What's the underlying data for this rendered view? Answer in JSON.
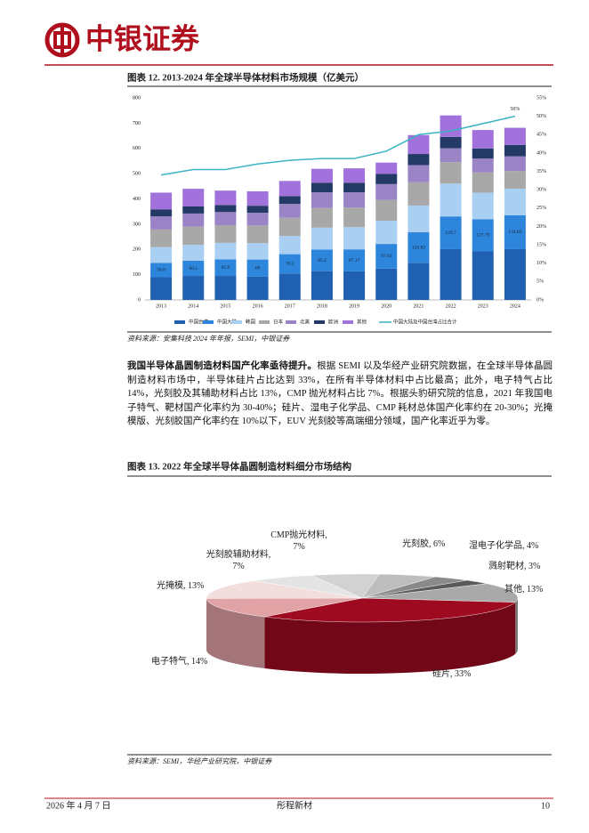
{
  "header": {
    "brand": "中银证券"
  },
  "chart_data": [
    {
      "type": "bar",
      "stacked": true,
      "title": "图表 12. 2013-2024 年全球半导体材料市场规模（亿美元）",
      "source": "资料来源：安集科技 2024 年年报，SEMI，中银证券",
      "categories": [
        "2013",
        "2014",
        "2015",
        "2016",
        "2017",
        "2018",
        "2019",
        "2020",
        "2021",
        "2022",
        "2023",
        "2024"
      ],
      "series": [
        {
          "name": "中国台湾",
          "color": "#2060b0",
          "values": [
            90,
            95,
            95,
            92,
            105,
            114,
            113,
            124,
            147,
            201,
            192,
            201
          ]
        },
        {
          "name": "中国大陆",
          "color": "#2e86dc",
          "show_values": true,
          "values": [
            56.8,
            60.1,
            65.9,
            68,
            76.2,
            85.2,
            87.17,
            97.63,
            120.82,
            129.7,
            127.79,
            134.63
          ]
        },
        {
          "name": "韩国",
          "color": "#a9d0f2",
          "values": [
            62,
            63,
            65,
            65,
            72,
            87,
            88,
            92,
            106,
            130,
            105,
            105
          ]
        },
        {
          "name": "日本",
          "color": "#a8a8a8",
          "values": [
            70,
            72,
            70,
            70,
            72,
            78,
            78,
            82,
            92,
            85,
            80,
            70
          ]
        },
        {
          "name": "北美",
          "color": "#9a84c6",
          "values": [
            52,
            52,
            52,
            50,
            55,
            62,
            60,
            63,
            68,
            55,
            55,
            58
          ]
        },
        {
          "name": "欧洲",
          "color": "#243a66",
          "values": [
            28,
            28,
            28,
            28,
            31,
            38,
            38,
            40,
            44,
            45,
            40,
            45
          ]
        },
        {
          "name": "其他",
          "color": "#a272dc",
          "values": [
            66,
            70,
            57,
            57,
            60,
            55,
            57,
            45,
            75,
            85,
            73,
            68
          ]
        },
        {
          "name": "中国大陆及中国台湾占比合计",
          "type": "line",
          "axis": "y2",
          "color": "#3bb3c3",
          "values": [
            34,
            35.5,
            35.5,
            37,
            38,
            38.5,
            38.5,
            40.5,
            45,
            46,
            48,
            50
          ],
          "value_labels": [
            null,
            null,
            null,
            null,
            null,
            null,
            null,
            null,
            null,
            null,
            null,
            "50%"
          ]
        }
      ],
      "ylim": [
        0,
        800
      ],
      "yticks": [
        0,
        100,
        200,
        300,
        400,
        500,
        600,
        700,
        800
      ],
      "y2lim": [
        0,
        55
      ],
      "y2ticks": [
        {
          "value": 0,
          "label": "0%"
        },
        {
          "value": 5,
          "label": "5%"
        },
        {
          "value": 10,
          "label": "10%"
        },
        {
          "value": 15,
          "label": "15%"
        },
        {
          "value": 20,
          "label": "20%"
        },
        {
          "value": 25,
          "label": "25%"
        },
        {
          "value": 30,
          "label": "30%"
        },
        {
          "value": 35,
          "label": "35%"
        },
        {
          "value": 40,
          "label": "40%"
        },
        {
          "value": 45,
          "label": "45%"
        },
        {
          "value": 50,
          "label": "50%"
        },
        {
          "value": 55,
          "label": "55%"
        }
      ],
      "legend": "bottom"
    },
    {
      "type": "pie",
      "style": "3d",
      "title": "图表 13. 2022 年全球半导体晶圆制造材料细分市场结构",
      "source": "资料来源：SEMI，华经产业研究院，中银证券",
      "labels": [
        "硅片, 33%",
        "电子特气, 14%",
        "光掩模, 13%",
        "光刻胶辅助材料, 7%",
        "CMP抛光材料, 7%",
        "光刻胶, 6%",
        "湿电子化学品, 4%",
        "溅射靶材, 3%",
        "其他, 13%"
      ],
      "values": [
        33,
        14,
        13,
        7,
        7,
        6,
        4,
        3,
        13
      ],
      "colors": [
        "#9e0b20",
        "#e2a3a6",
        "#f3dede",
        "#e4e4e4",
        "#d2d2d2",
        "#bdbdbd",
        "#8a8a8a",
        "#5a5a5a",
        "#a9a9a9"
      ]
    }
  ],
  "paragraph": {
    "lead": "我国半导体晶圆制造材料国产化率亟待提升。",
    "body": "根据 SEMI 以及华经产业研究院数据，在全球半导体晶圆制造材料市场中，半导体硅片占比达到 33%，在所有半导体材料中占比最高；此外，电子特气占比 14%，光刻胶及其辅助材料占比 13%，CMP 抛光材料占比 7%。根据头豹研究院的信息，2021 年我国电子特气、靶材国产化率约为 30-40%；硅片、湿电子化学品、CMP 耗材总体国产化率约在 20-30%；光掩模版、光刻胶国产化率约在 10%以下，EUV 光刻胶等高端细分领域，国产化率近乎为零。"
  },
  "footer": {
    "date": "2026 年 4 月 7 日",
    "company": "彤程新材",
    "page": "10"
  }
}
